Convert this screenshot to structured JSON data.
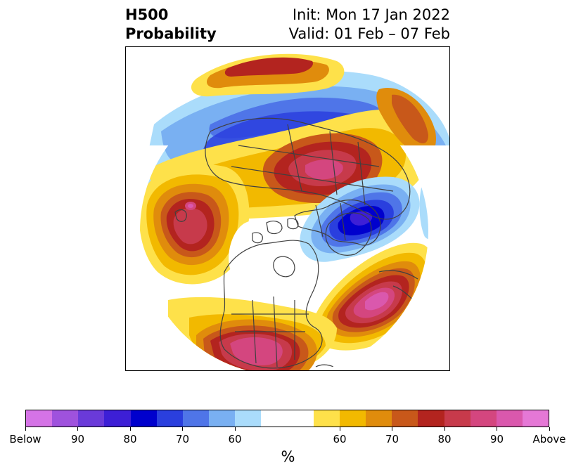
{
  "title": {
    "left_line1": "H500",
    "left_line2": "Probability",
    "right_line1": "Init: Mon 17 Jan 2022",
    "right_line2": "Valid: 01 Feb – 07 Feb"
  },
  "map": {
    "projection": "north-polar-stereographic",
    "coastline_color": "#404040",
    "anomalies": [
      {
        "region": "north-pacific-gulf-of-alaska",
        "sign": "above",
        "level": 90
      },
      {
        "region": "eastern-north-atlantic",
        "sign": "above",
        "level": 90
      },
      {
        "region": "southwestern-united-states-mexico",
        "sign": "above",
        "level": 90
      },
      {
        "region": "siberia",
        "sign": "above",
        "level": 80
      },
      {
        "region": "greenland-iceland-arctic",
        "sign": "below",
        "level": 80
      },
      {
        "region": "central-asia",
        "sign": "below",
        "level": 70
      },
      {
        "region": "arctic-ocean-east-siberia",
        "sign": "below",
        "level": 60
      }
    ]
  },
  "colorbar": {
    "colors": [
      "#d573e6",
      "#9f52dd",
      "#6a3ad9",
      "#3d1fd6",
      "#0000cd",
      "#2a3fde",
      "#4f75e8",
      "#79b0f2",
      "#aadcfb",
      "#ffffff",
      "#ffffff",
      "#fee14a",
      "#f2b900",
      "#e08c0c",
      "#c8581a",
      "#b3241f",
      "#c73a4b",
      "#d4467f",
      "#da58ad",
      "#e578d6"
    ],
    "labels": [
      {
        "text": "Below",
        "boundary": 0
      },
      {
        "text": "90",
        "boundary": 2
      },
      {
        "text": "80",
        "boundary": 4
      },
      {
        "text": "70",
        "boundary": 6
      },
      {
        "text": "60",
        "boundary": 8
      },
      {
        "text": "60",
        "boundary": 12
      },
      {
        "text": "70",
        "boundary": 14
      },
      {
        "text": "80",
        "boundary": 16
      },
      {
        "text": "90",
        "boundary": 18
      },
      {
        "text": "Above",
        "boundary": 20
      }
    ],
    "unit": "%"
  }
}
